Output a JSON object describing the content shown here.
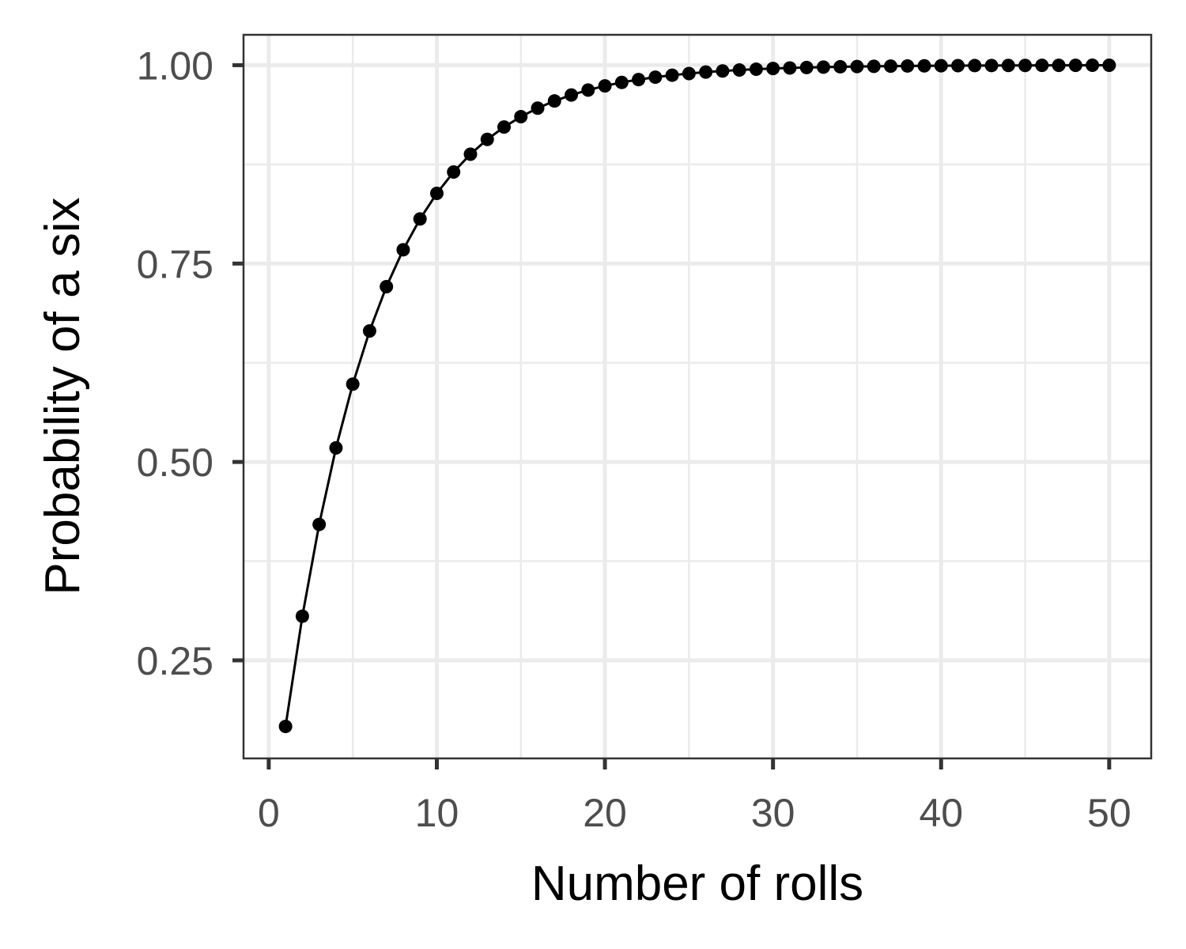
{
  "chart_data": {
    "type": "line",
    "title": "",
    "xlabel": "Number of rolls",
    "ylabel": "Probability of a six",
    "xlim": [
      -1.5,
      52.5
    ],
    "ylim": [
      0.1264,
      1.0383
    ],
    "x_ticks": [
      0,
      10,
      20,
      30,
      40,
      50
    ],
    "x_tick_labels": [
      "0",
      "10",
      "20",
      "30",
      "40",
      "50"
    ],
    "y_ticks": [
      0.25,
      0.5,
      0.75,
      1.0
    ],
    "y_tick_labels": [
      "0.25",
      "0.50",
      "0.75",
      "1.00"
    ],
    "x_minor_ticks": [
      5,
      15,
      25,
      35,
      45
    ],
    "y_minor_ticks": [
      0.375,
      0.625,
      0.875
    ],
    "grid": true,
    "legend": "none",
    "series": [
      {
        "color": "#000000",
        "markers": true,
        "x": [
          1,
          2,
          3,
          4,
          5,
          6,
          7,
          8,
          9,
          10,
          11,
          12,
          13,
          14,
          15,
          16,
          17,
          18,
          19,
          20,
          21,
          22,
          23,
          24,
          25,
          26,
          27,
          28,
          29,
          30,
          31,
          32,
          33,
          34,
          35,
          36,
          37,
          38,
          39,
          40,
          41,
          42,
          43,
          44,
          45,
          46,
          47,
          48,
          49,
          50
        ],
        "y": [
          0.1667,
          0.3056,
          0.4213,
          0.5177,
          0.5981,
          0.6651,
          0.7209,
          0.7674,
          0.8062,
          0.8385,
          0.8654,
          0.8878,
          0.9065,
          0.9221,
          0.9351,
          0.9459,
          0.9549,
          0.9624,
          0.9687,
          0.9739,
          0.9783,
          0.9819,
          0.9849,
          0.9874,
          0.9895,
          0.9913,
          0.9927,
          0.9939,
          0.9949,
          0.9958,
          0.9965,
          0.9971,
          0.9976,
          0.998,
          0.9983,
          0.9986,
          0.9988,
          0.999,
          0.9992,
          0.9993,
          0.9994,
          0.9995,
          0.9996,
          0.9997,
          0.9997,
          0.9998,
          0.9998,
          0.9998,
          0.9999,
          0.9999
        ]
      }
    ]
  }
}
